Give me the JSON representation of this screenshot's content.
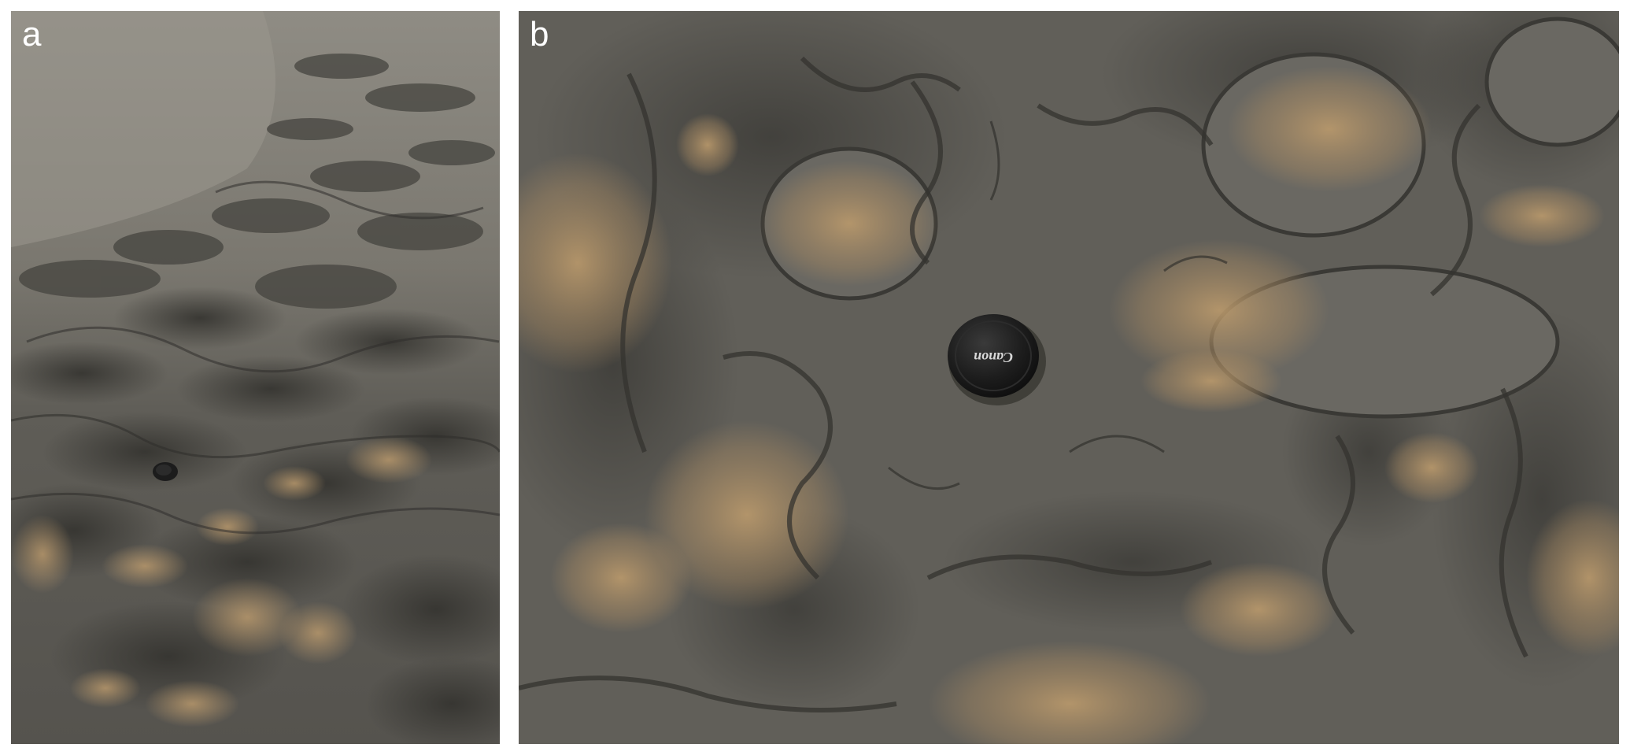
{
  "figure": {
    "panels": [
      {
        "label": "a"
      },
      {
        "label": "b",
        "lens_cap_text": "Canon"
      }
    ],
    "colors": {
      "sediment": "#5d5b55",
      "sediment_dark": "#3e3d39",
      "wet_sheen": "#8c8a82",
      "ochre_patch": "#b6956a",
      "lens_cap": "#1c1c1c",
      "background": "#ffffff"
    }
  }
}
